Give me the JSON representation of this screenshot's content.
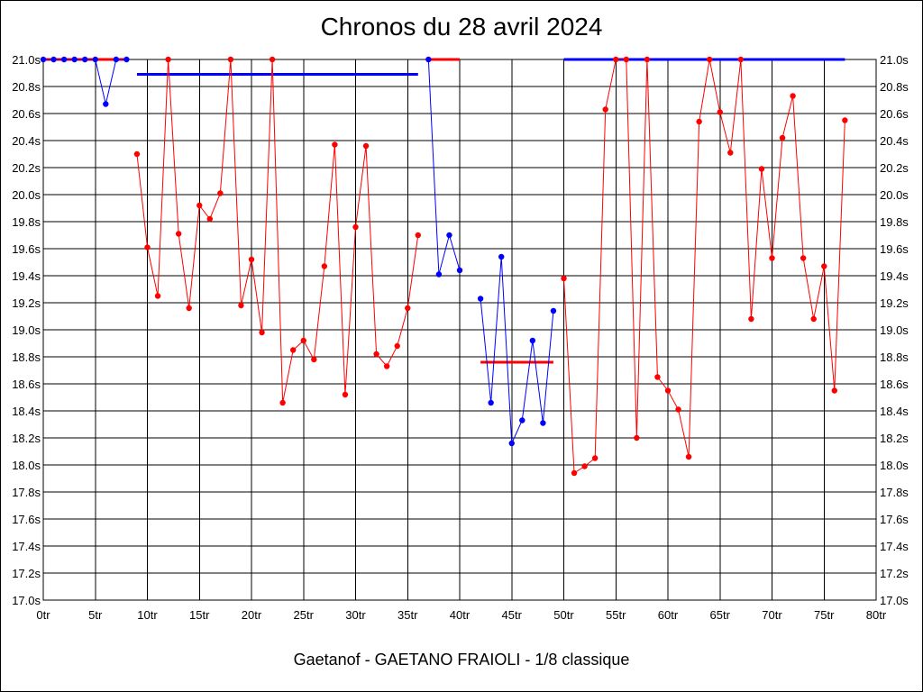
{
  "title": "Chronos du 28 avril 2024",
  "caption": "Gaetanof - GAETANO FRAIOLI - 1/8 classique",
  "colors": {
    "red": "#ff0000",
    "blue": "#0000ff",
    "grid": "#000000"
  },
  "chart_data": {
    "type": "line",
    "xlabel": "",
    "ylabel": "",
    "xlim": [
      0,
      80
    ],
    "ylim": [
      17.0,
      21.0
    ],
    "x_ticks": [
      0,
      5,
      10,
      15,
      20,
      25,
      30,
      35,
      40,
      45,
      50,
      55,
      60,
      65,
      70,
      75,
      80
    ],
    "x_tick_labels": [
      "0tr",
      "5tr",
      "10tr",
      "15tr",
      "20tr",
      "25tr",
      "30tr",
      "35tr",
      "40tr",
      "45tr",
      "50tr",
      "55tr",
      "60tr",
      "65tr",
      "70tr",
      "75tr",
      "80tr"
    ],
    "y_ticks": [
      17.0,
      17.2,
      17.4,
      17.6,
      17.8,
      18.0,
      18.2,
      18.4,
      18.6,
      18.8,
      19.0,
      19.2,
      19.4,
      19.6,
      19.8,
      20.0,
      20.2,
      20.4,
      20.6,
      20.8,
      21.0
    ],
    "y_tick_labels": [
      "17.0s",
      "17.2s",
      "17.4s",
      "17.6s",
      "17.8s",
      "18.0s",
      "18.2s",
      "18.4s",
      "18.6s",
      "18.8s",
      "19.0s",
      "19.2s",
      "19.4s",
      "19.6s",
      "19.8s",
      "20.0s",
      "20.2s",
      "20.4s",
      "20.6s",
      "20.8s",
      "21.0s"
    ],
    "grid": true,
    "series": [
      {
        "color": "#0000ff",
        "points": [
          [
            0,
            21.0
          ],
          [
            1,
            21.0
          ],
          [
            2,
            21.0
          ],
          [
            3,
            21.0
          ],
          [
            4,
            21.0
          ],
          [
            5,
            21.0
          ],
          [
            6,
            20.67
          ],
          [
            7,
            21.0
          ],
          [
            8,
            21.0
          ]
        ]
      },
      {
        "color": "#ff0000",
        "points": [
          [
            9,
            20.3
          ],
          [
            10,
            19.61
          ],
          [
            11,
            19.25
          ],
          [
            12,
            21.0
          ],
          [
            13,
            19.71
          ],
          [
            14,
            19.16
          ],
          [
            15,
            19.92
          ],
          [
            16,
            19.82
          ],
          [
            17,
            20.01
          ],
          [
            18,
            21.0
          ],
          [
            19,
            19.18
          ],
          [
            20,
            19.52
          ],
          [
            21,
            18.98
          ],
          [
            22,
            21.0
          ],
          [
            23,
            18.46
          ],
          [
            24,
            18.85
          ],
          [
            25,
            18.92
          ],
          [
            26,
            18.78
          ],
          [
            27,
            19.47
          ],
          [
            28,
            20.37
          ],
          [
            29,
            18.52
          ],
          [
            30,
            19.76
          ],
          [
            31,
            20.36
          ],
          [
            32,
            18.82
          ],
          [
            33,
            18.73
          ],
          [
            34,
            18.88
          ],
          [
            35,
            19.16
          ],
          [
            36,
            19.7
          ]
        ]
      },
      {
        "color": "#0000ff",
        "points": [
          [
            37,
            21.0
          ],
          [
            38,
            19.41
          ],
          [
            39,
            19.7
          ],
          [
            40,
            19.44
          ]
        ]
      },
      {
        "color": "#0000ff",
        "points": [
          [
            42,
            19.23
          ],
          [
            43,
            18.46
          ],
          [
            44,
            19.54
          ],
          [
            45,
            18.16
          ],
          [
            46,
            18.33
          ],
          [
            47,
            18.92
          ],
          [
            48,
            18.31
          ],
          [
            49,
            19.14
          ]
        ]
      },
      {
        "color": "#ff0000",
        "points": [
          [
            50,
            19.38
          ],
          [
            51,
            17.94
          ],
          [
            52,
            17.99
          ],
          [
            53,
            18.05
          ],
          [
            54,
            20.63
          ],
          [
            55,
            21.0
          ],
          [
            56,
            21.0
          ],
          [
            57,
            18.2
          ],
          [
            58,
            21.0
          ],
          [
            59,
            18.65
          ],
          [
            60,
            18.55
          ],
          [
            61,
            18.41
          ],
          [
            62,
            18.06
          ],
          [
            63,
            20.54
          ],
          [
            64,
            21.0
          ],
          [
            65,
            20.61
          ],
          [
            66,
            20.31
          ],
          [
            67,
            21.0
          ],
          [
            68,
            19.08
          ],
          [
            69,
            20.19
          ],
          [
            70,
            19.53
          ],
          [
            71,
            20.42
          ],
          [
            72,
            20.73
          ],
          [
            73,
            19.53
          ],
          [
            74,
            19.08
          ],
          [
            75,
            19.47
          ],
          [
            76,
            18.55
          ],
          [
            77,
            20.55
          ]
        ]
      }
    ],
    "average_lines": [
      {
        "color": "#ff0000",
        "x": [
          0,
          8
        ],
        "y": 21.0
      },
      {
        "color": "#0000ff",
        "x": [
          9,
          36
        ],
        "y": 20.89
      },
      {
        "color": "#ff0000",
        "x": [
          37,
          40
        ],
        "y": 21.0
      },
      {
        "color": "#ff0000",
        "x": [
          42,
          49
        ],
        "y": 18.76
      },
      {
        "color": "#0000ff",
        "x": [
          50,
          77
        ],
        "y": 21.0
      }
    ]
  }
}
